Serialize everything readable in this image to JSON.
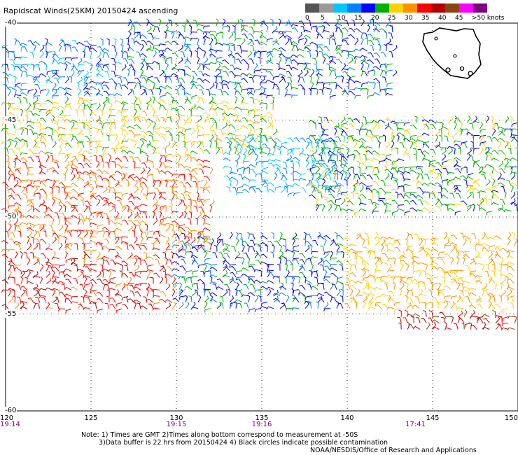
{
  "title": "Rapidscat Winds(25KM) 20150424 ascending",
  "legend": {
    "labels": [
      "0",
      "5",
      "10",
      "15",
      "20",
      "25",
      "30",
      "35",
      "40",
      "45",
      ">50 knots"
    ],
    "colors": [
      "#555555",
      "#9a9a9a",
      "#00c8ff",
      "#0080ff",
      "#0000ff",
      "#00b000",
      "#ffd000",
      "#ff9000",
      "#ff0000",
      "#b00000",
      "#8b4513",
      "#ff00ff",
      "#800080"
    ]
  },
  "axes": {
    "lon_labels": [
      "120",
      "125",
      "130",
      "135",
      "140",
      "145",
      "150"
    ],
    "lat_labels": [
      "-40",
      "-45",
      "-50",
      "-55",
      "-60"
    ],
    "time_labels": [
      "19:14",
      "19:15",
      "19:16",
      "17:41"
    ]
  },
  "notes": {
    "line1": "Note: 1) Times are GMT 2)Times along bottom correspond to measurement at -50S",
    "line2": "3)Data buffer is 22 hrs from 20150424 4) Black circles indicate possible contamination",
    "credit": "NOAA/NESDIS/Office of Research and Applications"
  },
  "map": {
    "lon_range": [
      120,
      150
    ],
    "lat_range": [
      -60,
      -40
    ],
    "land_label_icon": "tasmania-coastline-icon"
  },
  "wind_field": [
    {
      "region": "northwest",
      "lon": [
        120,
        127
      ],
      "lat": [
        -44,
        -41
      ],
      "speed_knots": 14
    },
    {
      "region": "north-center",
      "lon": [
        127,
        143
      ],
      "lat": [
        -44,
        -40
      ],
      "speed_knots": 18
    },
    {
      "region": "northwest-band",
      "lon": [
        120,
        136
      ],
      "lat": [
        -47,
        -44
      ],
      "speed_knots": 25
    },
    {
      "region": "western-band",
      "lon": [
        120,
        132
      ],
      "lat": [
        -52,
        -47
      ],
      "speed_knots": 32
    },
    {
      "region": "central-low",
      "lon": [
        133,
        140
      ],
      "lat": [
        -49,
        -46
      ],
      "speed_knots": 12
    },
    {
      "region": "eastern-mid",
      "lon": [
        138,
        150
      ],
      "lat": [
        -50,
        -45
      ],
      "speed_knots": 22
    },
    {
      "region": "southwest",
      "lon": [
        120,
        130
      ],
      "lat": [
        -55,
        -52
      ],
      "speed_knots": 35
    },
    {
      "region": "south-center",
      "lon": [
        130,
        140
      ],
      "lat": [
        -55,
        -51
      ],
      "speed_knots": 18
    },
    {
      "region": "southeast",
      "lon": [
        140,
        150
      ],
      "lat": [
        -55,
        -51
      ],
      "speed_knots": 28
    },
    {
      "region": "far-southeast",
      "lon": [
        143,
        150
      ],
      "lat": [
        -56,
        -55
      ],
      "speed_knots": 38
    }
  ]
}
